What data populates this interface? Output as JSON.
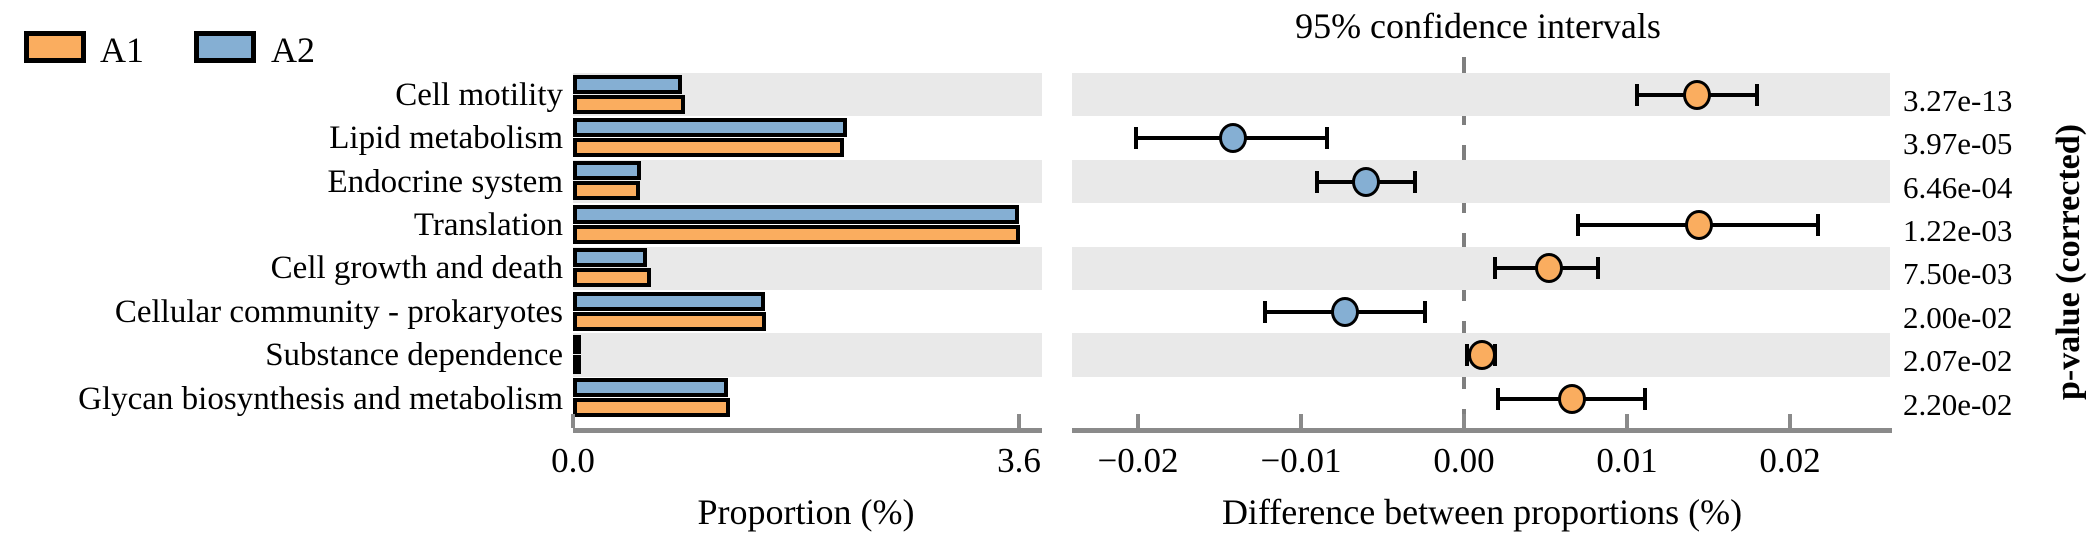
{
  "legend": {
    "items": [
      {
        "label": "A1",
        "color": "#faad5f"
      },
      {
        "label": "A2",
        "color": "#85afd3"
      }
    ]
  },
  "colors": {
    "a1_orange": "#faad5f",
    "a2_blue": "#85afd3",
    "band_gray": "#e9e9e9",
    "axis_gray": "#8a8a8a",
    "zero_line_gray": "#7f7f7f",
    "marker_outline": "#000000"
  },
  "chart_data": [
    {
      "type": "bar",
      "title": "",
      "xlabel": "Proportion (%)",
      "ylabel": "",
      "categories": [
        "Cell motility",
        "Lipid metabolism",
        "Endocrine system",
        "Translation",
        "Cell growth and death",
        "Cellular community - prokaryotes",
        "Substance dependence",
        "Glycan biosynthesis and metabolism"
      ],
      "series": [
        {
          "name": "A1",
          "color": "#faad5f",
          "values": [
            0.9,
            2.19,
            0.54,
            3.61,
            0.63,
            1.56,
            0.05,
            1.27
          ]
        },
        {
          "name": "A2",
          "color": "#85afd3",
          "values": [
            0.88,
            2.21,
            0.55,
            3.6,
            0.6,
            1.55,
            0.05,
            1.25
          ]
        }
      ],
      "xlim": [
        0,
        3.78
      ],
      "xticks": [
        0.0,
        3.6
      ],
      "xtick_labels": [
        "0.0",
        "3.6"
      ],
      "grid": false,
      "row_shading": "alternate-gray-starting-first-row"
    },
    {
      "type": "scatter",
      "title": "95% confidence intervals",
      "xlabel": "Difference between proportions (%)",
      "right_axis_label": "p-value (corrected)",
      "categories": [
        "Cell motility",
        "Lipid metabolism",
        "Endocrine system",
        "Translation",
        "Cell growth and death",
        "Cellular community - prokaryotes",
        "Substance dependence",
        "Glycan biosynthesis and metabolism"
      ],
      "points": [
        {
          "diff": 0.0143,
          "ci_low": 0.0106,
          "ci_high": 0.018,
          "dot_group": "A1",
          "p_value": "3.27e-13"
        },
        {
          "diff": -0.0142,
          "ci_low": -0.0201,
          "ci_high": -0.0084,
          "dot_group": "A2",
          "p_value": "3.97e-05"
        },
        {
          "diff": -0.006,
          "ci_low": -0.009,
          "ci_high": -0.003,
          "dot_group": "A2",
          "p_value": "6.46e-04"
        },
        {
          "diff": 0.0144,
          "ci_low": 0.007,
          "ci_high": 0.0217,
          "dot_group": "A1",
          "p_value": "1.22e-03"
        },
        {
          "diff": 0.0052,
          "ci_low": 0.0019,
          "ci_high": 0.0082,
          "dot_group": "A1",
          "p_value": "7.50e-03"
        },
        {
          "diff": -0.0073,
          "ci_low": -0.0122,
          "ci_high": -0.0024,
          "dot_group": "A2",
          "p_value": "2.00e-02"
        },
        {
          "diff": 0.0011,
          "ci_low": 0.0002,
          "ci_high": 0.0019,
          "dot_group": "A1",
          "p_value": "2.07e-02"
        },
        {
          "diff": 0.0066,
          "ci_low": 0.0021,
          "ci_high": 0.0111,
          "dot_group": "A1",
          "p_value": "2.20e-02"
        }
      ],
      "xlim": [
        -0.024,
        0.026
      ],
      "xticks": [
        -0.02,
        -0.01,
        0.0,
        0.01,
        0.02
      ],
      "xtick_labels": [
        "−0.02",
        "−0.01",
        "0.00",
        "0.01",
        "0.02"
      ],
      "zero_reference_line": true,
      "legend_position": "top-left-of-figure"
    }
  ]
}
